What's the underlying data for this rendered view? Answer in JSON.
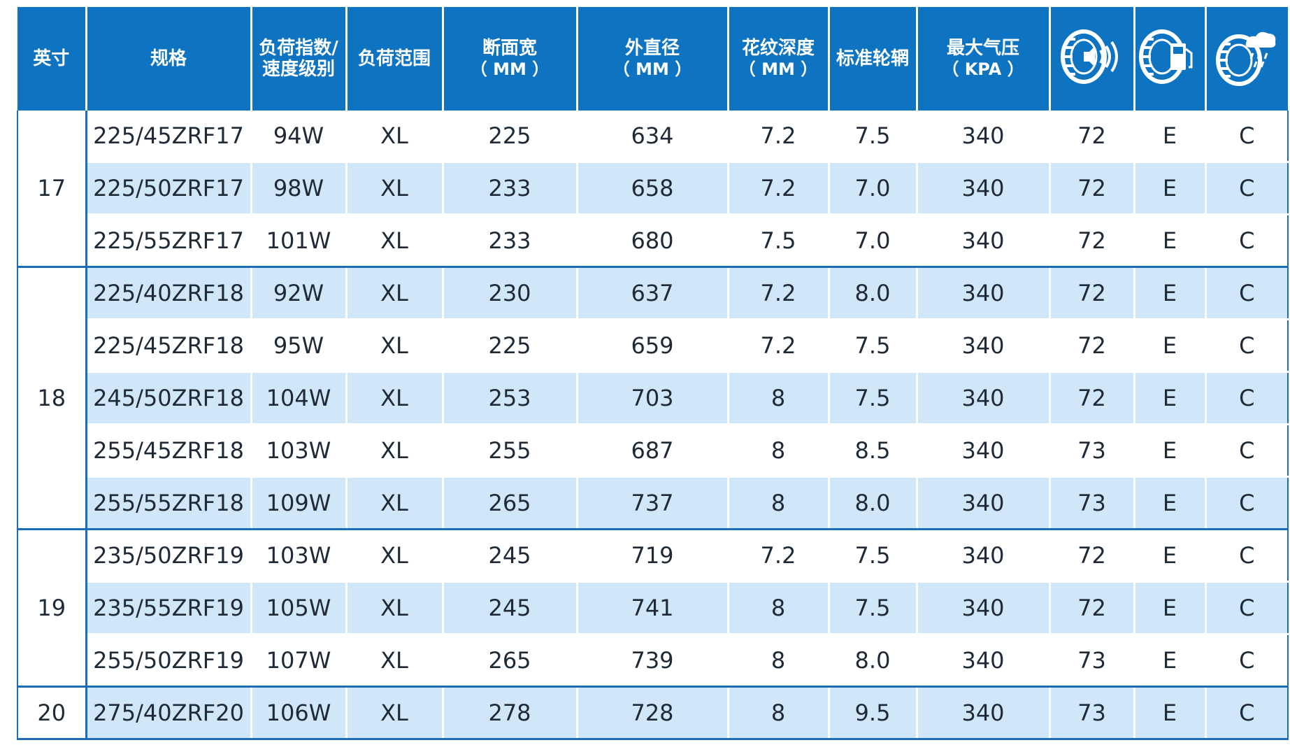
{
  "colors": {
    "header_bg": "#0e74c1",
    "stripe": "#cfe7f8",
    "border": "#1b6db8",
    "text": "#1f2a36"
  },
  "headers": {
    "inch": "英寸",
    "spec": "规格",
    "load_speed": [
      "负荷指数/",
      "速度级别"
    ],
    "load_range": "负荷范围",
    "section_width": "断面宽",
    "section_width_unit": "（ MM ）",
    "outer_diameter": "外直径",
    "outer_diameter_unit": "（ MM ）",
    "tread_depth": "花纹深度",
    "tread_depth_unit": "（ MM ）",
    "standard_rim": "标准轮辋",
    "max_pressure": "最大气压",
    "max_pressure_unit": "（ KPA ）",
    "icons": [
      "tire-noise-icon",
      "tire-fuel-icon",
      "tire-wet-grip-icon"
    ]
  },
  "groups": [
    {
      "inch": "17",
      "rows": [
        [
          "225/45ZRF17",
          "94W",
          "XL",
          "225",
          "634",
          "7.2",
          "7.5",
          "340",
          "72",
          "E",
          "C"
        ],
        [
          "225/50ZRF17",
          "98W",
          "XL",
          "233",
          "658",
          "7.2",
          "7.0",
          "340",
          "72",
          "E",
          "C"
        ],
        [
          "225/55ZRF17",
          "101W",
          "XL",
          "233",
          "680",
          "7.5",
          "7.0",
          "340",
          "72",
          "E",
          "C"
        ]
      ]
    },
    {
      "inch": "18",
      "rows": [
        [
          "225/40ZRF18",
          "92W",
          "XL",
          "230",
          "637",
          "7.2",
          "8.0",
          "340",
          "72",
          "E",
          "C"
        ],
        [
          "225/45ZRF18",
          "95W",
          "XL",
          "225",
          "659",
          "7.2",
          "7.5",
          "340",
          "72",
          "E",
          "C"
        ],
        [
          "245/50ZRF18",
          "104W",
          "XL",
          "253",
          "703",
          "8",
          "7.5",
          "340",
          "72",
          "E",
          "C"
        ],
        [
          "255/45ZRF18",
          "103W",
          "XL",
          "255",
          "687",
          "8",
          "8.5",
          "340",
          "73",
          "E",
          "C"
        ],
        [
          "255/55ZRF18",
          "109W",
          "XL",
          "265",
          "737",
          "8",
          "8.0",
          "340",
          "73",
          "E",
          "C"
        ]
      ]
    },
    {
      "inch": "19",
      "rows": [
        [
          "235/50ZRF19",
          "103W",
          "XL",
          "245",
          "719",
          "7.2",
          "7.5",
          "340",
          "72",
          "E",
          "C"
        ],
        [
          "235/55ZRF19",
          "105W",
          "XL",
          "245",
          "741",
          "8",
          "7.5",
          "340",
          "72",
          "E",
          "C"
        ],
        [
          "255/50ZRF19",
          "107W",
          "XL",
          "265",
          "739",
          "8",
          "8.0",
          "340",
          "73",
          "E",
          "C"
        ]
      ]
    },
    {
      "inch": "20",
      "rows": [
        [
          "275/40ZRF20",
          "106W",
          "XL",
          "278",
          "728",
          "8",
          "9.5",
          "340",
          "73",
          "E",
          "C"
        ]
      ]
    }
  ]
}
